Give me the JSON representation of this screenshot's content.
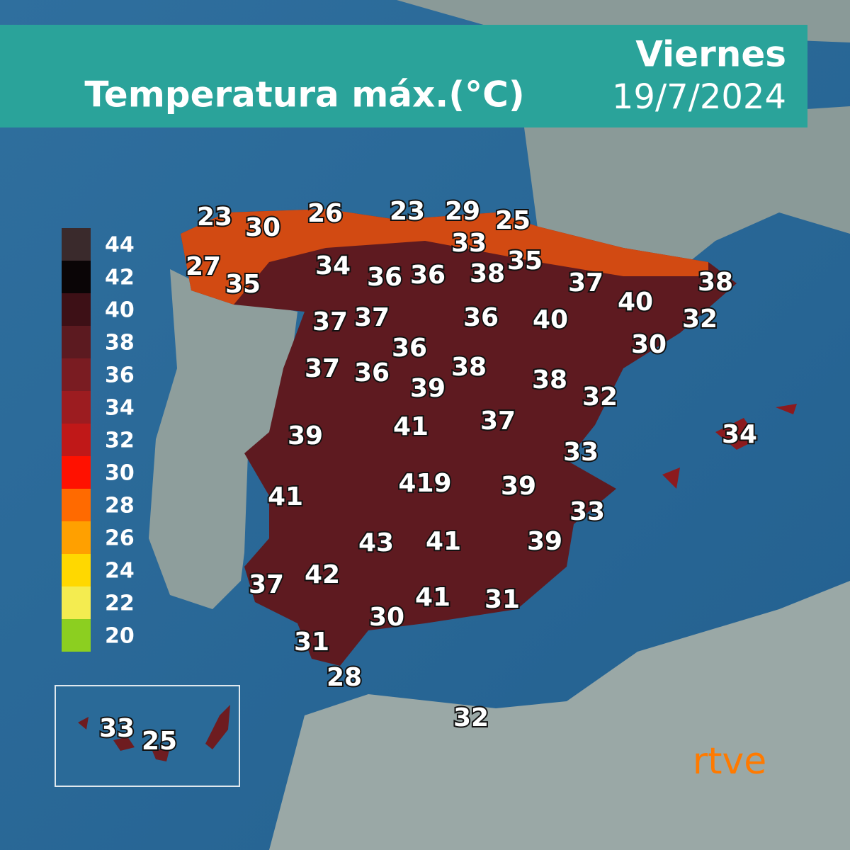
{
  "header": {
    "title": "Temperatura máx.(°C)",
    "day": "Viernes",
    "date": "19/7/2024"
  },
  "legend": {
    "labels": [
      44,
      42,
      40,
      38,
      36,
      34,
      32,
      30,
      28,
      26,
      24,
      22,
      20
    ],
    "colors": [
      "#3a2a2c",
      "#0a0506",
      "#3d1016",
      "#5c1a20",
      "#7a1c22",
      "#9c1c20",
      "#c01818",
      "#ff1100",
      "#ff6a00",
      "#ffa000",
      "#ffd800",
      "#f4ec50",
      "#8ccf20"
    ]
  },
  "temperatures": [
    23,
    30,
    26,
    23,
    29,
    25,
    33,
    27,
    35,
    34,
    36,
    36,
    38,
    35,
    37,
    40,
    38,
    32,
    30,
    37,
    37,
    36,
    40,
    36,
    37,
    36,
    38,
    39,
    38,
    32,
    39,
    41,
    37,
    34,
    33,
    419,
    39,
    41,
    33,
    43,
    41,
    39,
    37,
    42,
    41,
    31,
    30,
    31,
    28,
    32
  ],
  "canarias": [
    33,
    25
  ],
  "logo": "rtve"
}
